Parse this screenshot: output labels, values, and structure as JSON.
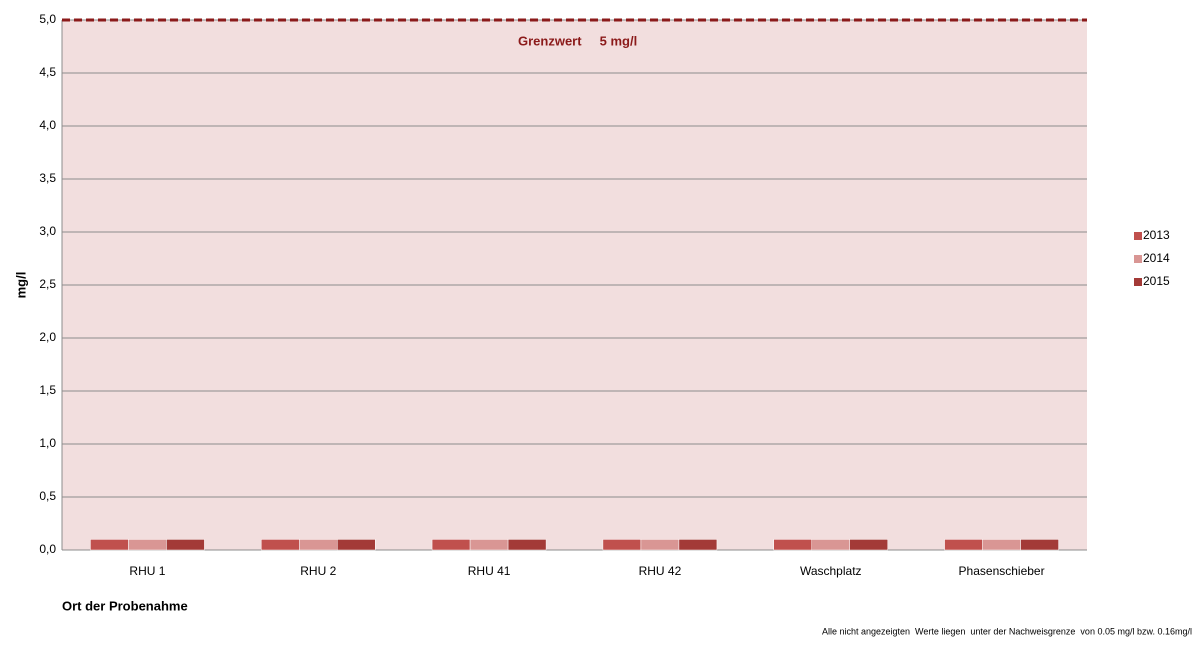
{
  "chart_data": {
    "type": "bar",
    "y_label": "mg/l",
    "x_label": "Ort der Probenahme",
    "footnote": "Alle nicht angezeigten  Werte liegen  unter der Nachweisgrenze  von 0.05 mg/l bzw. 0.16mg/l",
    "threshold": 5,
    "threshold_color": "#8b1a1a",
    "annotation": "Grenzwert     5 mg/l",
    "categories": [
      "RHU 1",
      "RHU 2",
      "RHU 41",
      "RHU 42",
      "Waschplatz",
      "Phasenschieber"
    ],
    "series": [
      {
        "name": "2013",
        "color": "#c0504d",
        "values": [
          0.1,
          0.1,
          0.1,
          0.1,
          0.1,
          0.1
        ]
      },
      {
        "name": "2014",
        "color": "#d99694",
        "values": [
          0.1,
          0.1,
          0.1,
          0.1,
          0.1,
          0.1
        ]
      },
      {
        "name": "2015",
        "color": "#a33a37",
        "values": [
          0.1,
          0.1,
          0.1,
          0.1,
          0.1,
          0.1
        ]
      }
    ],
    "ylim": [
      0,
      5
    ],
    "yticks": [
      {
        "value": 0,
        "label": "0,0"
      },
      {
        "value": 0.5,
        "label": "0,5"
      },
      {
        "value": 1,
        "label": "1,0"
      },
      {
        "value": 1.5,
        "label": "1,5"
      },
      {
        "value": 2,
        "label": "2,0"
      },
      {
        "value": 2.5,
        "label": "2,5"
      },
      {
        "value": 3,
        "label": "3,0"
      },
      {
        "value": 3.5,
        "label": "3,5"
      },
      {
        "value": 4,
        "label": "4,0"
      },
      {
        "value": 4.5,
        "label": "4,5"
      },
      {
        "value": 5,
        "label": "5,0"
      }
    ],
    "grid": true,
    "legend": "right"
  }
}
